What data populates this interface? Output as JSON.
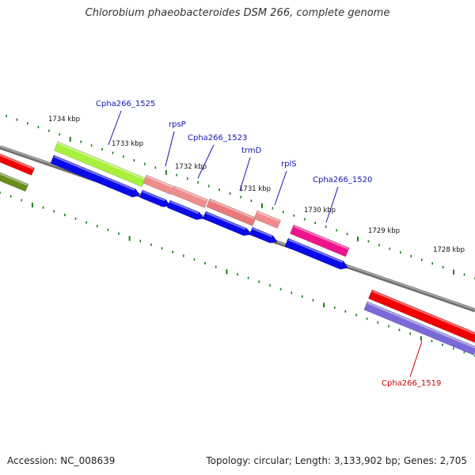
{
  "title": "Chlorobium phaeobacteroides DSM 266, complete genome",
  "footer": {
    "accession": "Accession: NC_008639",
    "summary": "Topology: circular; Length: 3,133,902 bp; Genes: 2,705"
  },
  "colors": {
    "backbone": "#8a8a8a",
    "tick": "#1a7a1a",
    "cds": "#0a0ae8",
    "label": "#1414b4",
    "label_highlight": "#cc0000"
  },
  "scale": {
    "ticks": [
      "1734 kbp",
      "1733 kbp",
      "1732 kbp",
      "1731 kbp",
      "1730 kbp",
      "1729 kbp",
      "1728 kbp"
    ]
  },
  "features": [
    {
      "id": "red-left-top",
      "name": "",
      "track": "outer",
      "color": "#f00000"
    },
    {
      "id": "olive-left",
      "name": "",
      "track": "outer2",
      "color": "#6b8c1f"
    },
    {
      "id": "green-1525",
      "name": "",
      "track": "outer",
      "color": "#a8f03c"
    },
    {
      "id": "salmon-1",
      "name": "",
      "track": "outer",
      "color": "#f08c8c"
    },
    {
      "id": "salmon-2",
      "name": "",
      "track": "outer",
      "color": "#f08c8c"
    },
    {
      "id": "salmon-3",
      "name": "",
      "track": "outer",
      "color": "#e87a7a"
    },
    {
      "id": "salmon-4",
      "name": "",
      "track": "outer",
      "color": "#f08c8c"
    },
    {
      "id": "magenta-1520",
      "name": "",
      "track": "outer",
      "color": "#f0148c"
    },
    {
      "id": "red-1519",
      "name": "",
      "track": "inner",
      "color": "#f00000"
    },
    {
      "id": "purple-1519",
      "name": "",
      "track": "inner2",
      "color": "#7a6ad8"
    }
  ],
  "labels": [
    {
      "id": "cpha266-1525",
      "text": "Cpha266_1525",
      "highlight": false
    },
    {
      "id": "rpsp",
      "text": "rpsP",
      "highlight": false
    },
    {
      "id": "cpha266-1523",
      "text": "Cpha266_1523",
      "highlight": false
    },
    {
      "id": "trmd",
      "text": "trmD",
      "highlight": false
    },
    {
      "id": "rpls",
      "text": "rplS",
      "highlight": false
    },
    {
      "id": "cpha266-1520",
      "text": "Cpha266_1520",
      "highlight": false
    },
    {
      "id": "cpha266-1519",
      "text": "Cpha266_1519",
      "highlight": true
    }
  ]
}
